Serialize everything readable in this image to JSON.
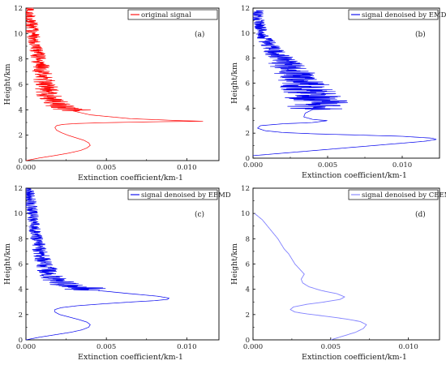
{
  "chart_data": [
    {
      "type": "line",
      "panel_label": "(a)",
      "legend": "original signal",
      "color": "#ff0000",
      "noise": "high",
      "xlabel": "Extinction coefficient/km-1",
      "ylabel": "Height/km",
      "xlim": [
        0,
        0.012
      ],
      "ylim": [
        0,
        12
      ],
      "xticks": [
        "0.000",
        "0.005",
        "0.010"
      ],
      "yticks": [
        "0",
        "2",
        "4",
        "6",
        "8",
        "10",
        "12"
      ],
      "series": [
        {
          "x": [
            0.0,
            0.0008,
            0.0018,
            0.0027,
            0.0034,
            0.0038,
            0.004,
            0.0039,
            0.0036,
            0.0031,
            0.0026,
            0.0022,
            0.0019,
            0.0018,
            0.0019,
            0.0023,
            0.0032,
            0.0048,
            0.0068,
            0.0088,
            0.011,
            0.0095,
            0.0065,
            0.004,
            0.0026,
            0.0018,
            0.0015,
            0.0012,
            0.001,
            0.0008,
            0.0006,
            0.0004,
            0.0003,
            0.0002,
            0.0001
          ],
          "y": [
            0.0,
            0.2,
            0.4,
            0.6,
            0.8,
            1.0,
            1.2,
            1.4,
            1.6,
            1.8,
            2.0,
            2.2,
            2.4,
            2.6,
            2.75,
            2.85,
            2.92,
            2.98,
            3.03,
            3.07,
            3.1,
            3.15,
            3.3,
            3.6,
            4.0,
            4.5,
            5.0,
            6.0,
            7.0,
            8.0,
            9.0,
            10.0,
            11.0,
            11.5,
            12.0
          ]
        }
      ]
    },
    {
      "type": "line",
      "panel_label": "(b)",
      "legend": "signal denoised by EMD",
      "color": "#0000ee",
      "noise": "high",
      "xlabel": "Extinction coefficient/km-1",
      "ylabel": "Height/km",
      "xlim": [
        0,
        0.0125
      ],
      "ylim": [
        0,
        12
      ],
      "xticks": [
        "0.000",
        "0.005",
        "0.010"
      ],
      "yticks": [
        "0",
        "2",
        "4",
        "6",
        "8",
        "10",
        "12"
      ],
      "series": [
        {
          "x": [
            0.0,
            0.002,
            0.004,
            0.006,
            0.008,
            0.01,
            0.0115,
            0.0123,
            0.012,
            0.01,
            0.007,
            0.004,
            0.002,
            0.0008,
            0.0003,
            0.0005,
            0.002,
            0.004,
            0.005,
            0.004,
            0.0034,
            0.0035,
            0.0042,
            0.0044,
            0.004,
            0.0034,
            0.0026,
            0.0018,
            0.0011,
            0.0006,
            0.0003
          ],
          "y": [
            0.2,
            0.4,
            0.6,
            0.8,
            1.0,
            1.2,
            1.35,
            1.5,
            1.6,
            1.75,
            1.85,
            1.95,
            2.05,
            2.2,
            2.4,
            2.6,
            2.75,
            2.85,
            3.0,
            3.1,
            3.3,
            3.6,
            4.0,
            4.5,
            5.0,
            6.0,
            7.0,
            8.0,
            9.0,
            10.0,
            11.8
          ]
        }
      ]
    },
    {
      "type": "line",
      "panel_label": "(c)",
      "legend": "signal denoised by EEMD",
      "color": "#0000ee",
      "noise": "medium",
      "xlabel": "Extinction coefficient/km-1",
      "ylabel": "Height/km",
      "xlim": [
        0,
        0.012
      ],
      "ylim": [
        0,
        12
      ],
      "xticks": [
        "0.000",
        "0.005",
        "0.010"
      ],
      "yticks": [
        "0",
        "2",
        "4",
        "6",
        "8",
        "10",
        "12"
      ],
      "series": [
        {
          "x": [
            0.0,
            0.0008,
            0.0018,
            0.0028,
            0.0035,
            0.0039,
            0.004,
            0.0038,
            0.0033,
            0.0027,
            0.0021,
            0.0018,
            0.0018,
            0.0022,
            0.0032,
            0.0048,
            0.0066,
            0.008,
            0.0088,
            0.0089,
            0.0082,
            0.0065,
            0.0045,
            0.003,
            0.0022,
            0.0017,
            0.0014,
            0.0011,
            0.0009,
            0.0007,
            0.0005,
            0.0004,
            0.0003,
            0.0002,
            0.0001
          ],
          "y": [
            0.0,
            0.2,
            0.4,
            0.6,
            0.8,
            1.0,
            1.2,
            1.4,
            1.6,
            1.8,
            2.0,
            2.2,
            2.4,
            2.55,
            2.7,
            2.85,
            3.0,
            3.1,
            3.2,
            3.3,
            3.45,
            3.65,
            3.9,
            4.2,
            4.5,
            4.9,
            5.4,
            6.0,
            7.0,
            8.0,
            9.0,
            10.0,
            11.0,
            11.5,
            12.0
          ]
        }
      ]
    },
    {
      "type": "line",
      "panel_label": "(d)",
      "legend": "signal denoised by CEEMDAN",
      "color": "#8080ff",
      "noise": "none",
      "xlabel": "Extinction coefficient/km-1",
      "ylabel": "Height/km",
      "xlim": [
        0,
        0.012
      ],
      "ylim": [
        0,
        12
      ],
      "xticks": [
        "0.000",
        "0.005",
        "0.010"
      ],
      "yticks": [
        "0",
        "2",
        "4",
        "6",
        "8",
        "10",
        "12"
      ],
      "series": [
        {
          "x": [
            0.005,
            0.0058,
            0.0066,
            0.0071,
            0.0073,
            0.0069,
            0.006,
            0.0048,
            0.0035,
            0.0027,
            0.0024,
            0.0026,
            0.0034,
            0.0046,
            0.0056,
            0.0059,
            0.0054,
            0.0044,
            0.0036,
            0.0032,
            0.0031,
            0.0033,
            0.003,
            0.0027,
            0.0025,
            0.0023,
            0.002,
            0.0018,
            0.0016,
            0.0014,
            0.0012,
            0.001,
            0.0008,
            0.0006,
            0.0004,
            0.0002,
            0.0001
          ],
          "y": [
            0.0,
            0.3,
            0.6,
            0.9,
            1.2,
            1.45,
            1.65,
            1.85,
            2.05,
            2.2,
            2.4,
            2.6,
            2.8,
            3.0,
            3.2,
            3.4,
            3.65,
            3.9,
            4.2,
            4.5,
            4.8,
            5.2,
            5.6,
            6.0,
            6.4,
            6.8,
            7.2,
            7.6,
            8.0,
            8.3,
            8.6,
            8.9,
            9.2,
            9.5,
            9.7,
            9.9,
            10.0
          ]
        }
      ]
    }
  ]
}
